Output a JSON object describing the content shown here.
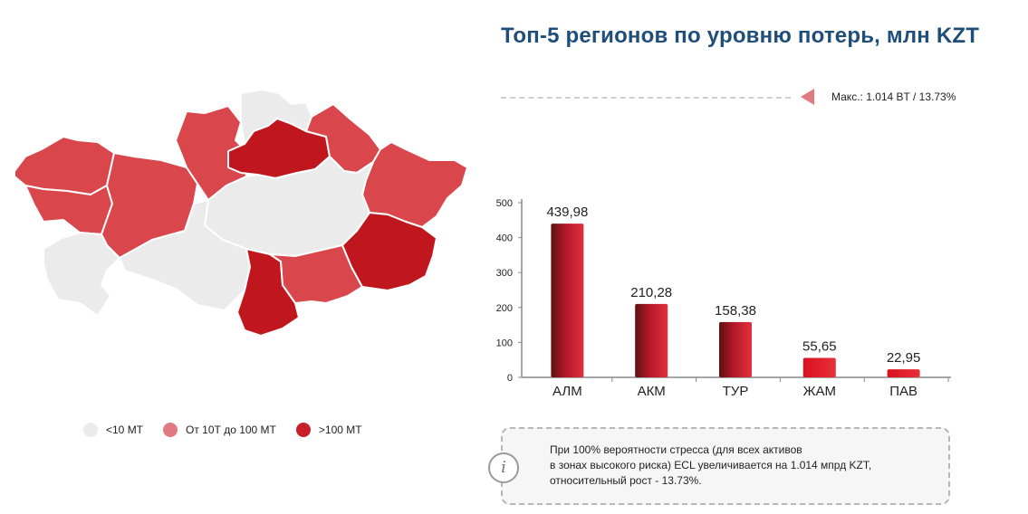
{
  "title": "Топ-5 регионов по уровню потерь, млн KZT",
  "max_label": "Макс.: 1.014 BT / 13.73%",
  "legend": [
    {
      "label": "<10 MT",
      "color": "#ebebeb"
    },
    {
      "label": "От 10Т до 100 MT",
      "color": "#e07a80"
    },
    {
      "label": ">100 MT",
      "color": "#c8202a"
    }
  ],
  "chart_data": {
    "type": "bar",
    "categories": [
      "АЛМ",
      "АКМ",
      "ТУР",
      "ЖАМ",
      "ПАВ"
    ],
    "values": [
      439.98,
      210.28,
      158.38,
      55.65,
      22.95
    ],
    "value_labels": [
      "439,98",
      "210,28",
      "158,38",
      "55,65",
      "22,95"
    ],
    "ylim": [
      0,
      500
    ],
    "yticks": [
      0,
      100,
      200,
      300,
      400,
      500
    ],
    "grid": false
  },
  "info": {
    "icon": "info-icon",
    "lines": [
      "При 100% вероятности стресса (для всех активов",
      "в зонах высокого риска) ECL увеличивается на 1.014 мпрд KZT,",
      "относительный рост - 13.73%."
    ]
  },
  "map_colors": {
    "low": "#ebebeb",
    "mid": "#d9464b",
    "high": "#c0171e"
  }
}
